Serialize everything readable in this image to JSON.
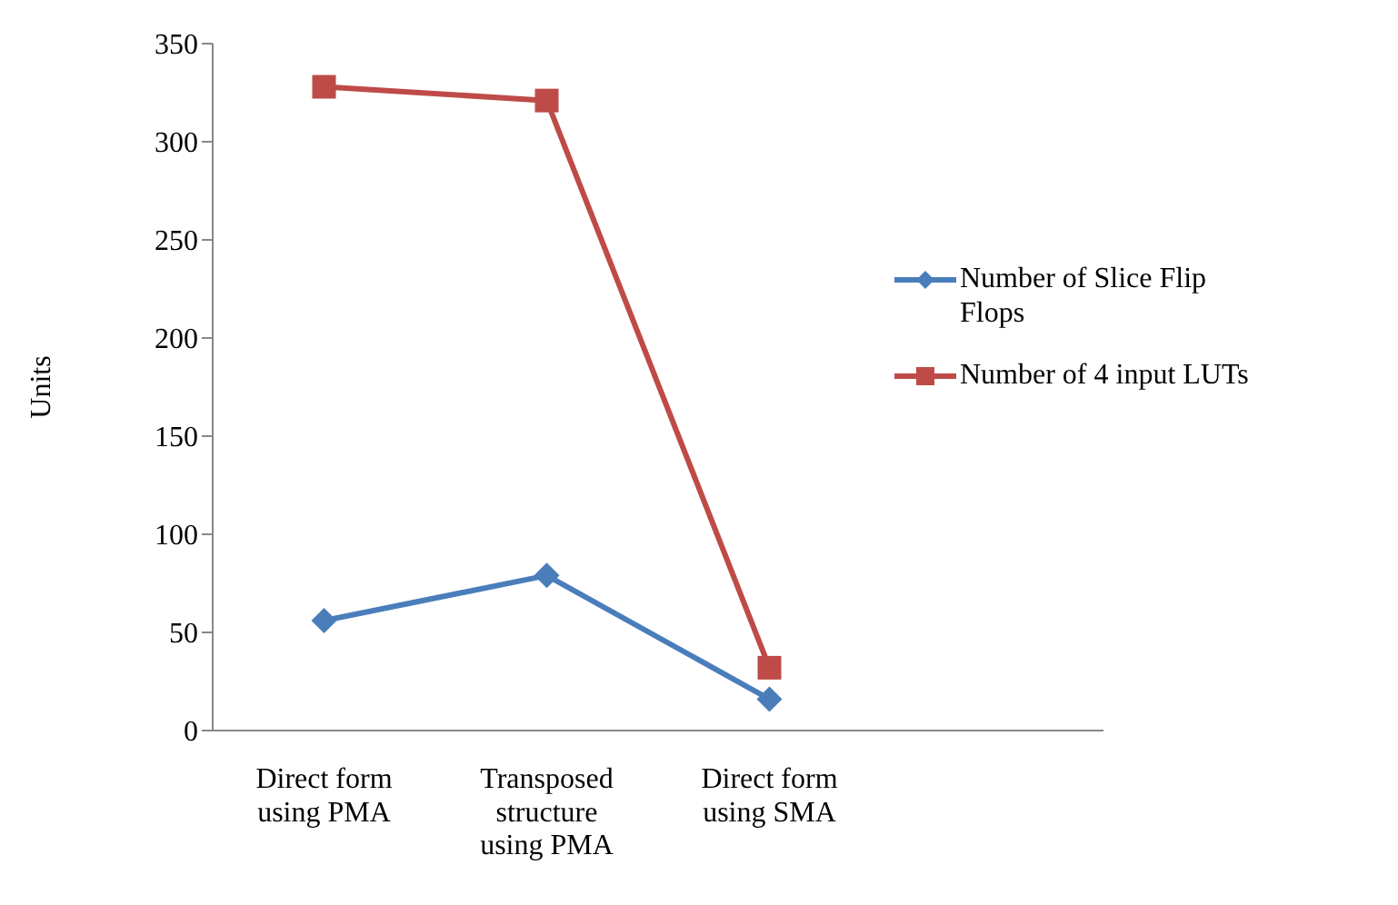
{
  "chart_data": {
    "type": "line",
    "ylabel": "Units",
    "categories": [
      "Direct form using PMA",
      "Transposed structure using PMA",
      "Direct form using SMA",
      null
    ],
    "series": [
      {
        "name": "Number of Slice Flip Flops",
        "color": "#4a7ebb",
        "marker": "diamond",
        "values": [
          56,
          79,
          16,
          null
        ]
      },
      {
        "name": "Number of 4 input LUTs",
        "color": "#be4b48",
        "marker": "square",
        "values": [
          328,
          321,
          32,
          null
        ]
      }
    ],
    "ylim": [
      0,
      350
    ],
    "yticks": [
      0,
      50,
      100,
      150,
      200,
      250,
      300,
      350
    ],
    "legend": "right",
    "line_style": "solid"
  }
}
